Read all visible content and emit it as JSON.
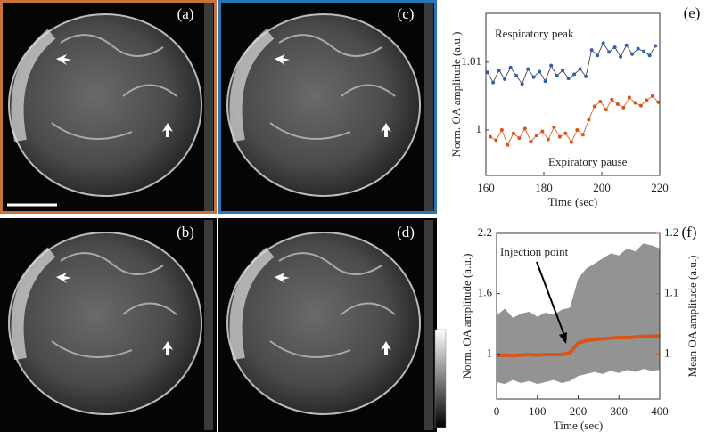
{
  "panels": [
    "(a)",
    "(b)",
    "(c)",
    "(d)"
  ],
  "chart_data": [
    {
      "type": "line",
      "panel": "(e)",
      "x_label": "Time (sec)",
      "y_label": "Norm. OA amplitude (a.u.)",
      "xlim": [
        160,
        220
      ],
      "xticks": [
        160,
        180,
        200,
        220
      ],
      "ylim": [
        0.9933,
        1.0172
      ],
      "yticks": [
        1,
        1.01
      ],
      "series": [
        {
          "name": "Respiratory peak",
          "color": "#2f5fb0",
          "x": [
            160.5,
            162.5,
            164.5,
            166.5,
            168.5,
            170.5,
            172.5,
            174.5,
            176.5,
            178.5,
            180.5,
            182.5,
            184.5,
            186.5,
            188.5,
            190.5,
            192.5,
            194.5,
            196.5,
            198.5,
            200.5,
            202.5,
            204.5,
            206.5,
            208.5,
            210.5,
            212.5,
            214.5,
            216.5,
            218.5
          ],
          "values": [
            1.0085,
            1.007,
            1.0088,
            1.0075,
            1.0092,
            1.008,
            1.0068,
            1.009,
            1.0078,
            1.0086,
            1.0072,
            1.0095,
            1.008,
            1.0088,
            1.0076,
            1.0082,
            1.009,
            1.0079,
            1.0118,
            1.011,
            1.0128,
            1.0115,
            1.0122,
            1.0108,
            1.0125,
            1.0112,
            1.012,
            1.0116,
            1.011,
            1.0124
          ]
        },
        {
          "name": "Expiratory pause",
          "color": "#d9541a",
          "x": [
            161.5,
            163.5,
            165.5,
            167.5,
            169.5,
            171.5,
            173.5,
            175.5,
            177.5,
            179.5,
            181.5,
            183.5,
            185.5,
            187.5,
            189.5,
            191.5,
            193.5,
            195.5,
            197.5,
            199.5,
            201.5,
            203.5,
            205.5,
            207.5,
            209.5,
            211.5,
            213.5,
            215.5,
            217.5,
            219.5
          ],
          "values": [
            0.999,
            0.9985,
            1.0,
            0.9978,
            0.9995,
            0.9988,
            1.0002,
            0.9983,
            0.9992,
            0.9998,
            0.9986,
            1.0004,
            0.999,
            0.9995,
            0.9982,
            1.0,
            0.9993,
            1.0015,
            1.0035,
            1.0042,
            1.003,
            1.0045,
            1.0038,
            1.0033,
            1.0048,
            1.004,
            1.0036,
            1.0044,
            1.005,
            1.0041
          ]
        }
      ]
    },
    {
      "type": "scatter",
      "panel": "(f)",
      "x_label": "Time (sec)",
      "y_label": "Norm. OA amplitude (a.u.)",
      "y2_label": "Mean OA amplitude (a.u.)",
      "annotation": "Injection point",
      "xlim": [
        0,
        400
      ],
      "xticks": [
        0,
        100,
        200,
        300,
        400
      ],
      "ylim": [
        0.55,
        2.2
      ],
      "yticks": [
        1,
        1.6,
        2.2
      ],
      "y2lim": [
        0.925,
        1.2
      ],
      "y2ticks": [
        1,
        1.1,
        1.2
      ],
      "band": {
        "color": "#808080",
        "x": [
          0,
          20,
          40,
          60,
          80,
          100,
          120,
          140,
          160,
          180,
          200,
          220,
          240,
          260,
          280,
          300,
          320,
          340,
          360,
          380,
          400
        ],
        "low": [
          0.72,
          0.7,
          0.74,
          0.71,
          0.73,
          0.7,
          0.72,
          0.74,
          0.71,
          0.73,
          0.78,
          0.8,
          0.82,
          0.8,
          0.83,
          0.81,
          0.84,
          0.82,
          0.85,
          0.83,
          0.84
        ],
        "high": [
          1.38,
          1.45,
          1.36,
          1.4,
          1.42,
          1.37,
          1.41,
          1.39,
          1.44,
          1.46,
          1.75,
          1.85,
          1.9,
          1.95,
          2.0,
          1.98,
          2.05,
          2.02,
          2.1,
          2.08,
          2.05
        ]
      },
      "series": [
        {
          "axis": "y2",
          "color": "#d9541a",
          "x": [
            0,
            20,
            40,
            60,
            80,
            100,
            120,
            140,
            160,
            180,
            200,
            220,
            240,
            260,
            280,
            300,
            320,
            340,
            360,
            380,
            400
          ],
          "values": [
            0.997,
            0.998,
            0.997,
            0.998,
            0.999,
            0.998,
            0.999,
            0.999,
            0.999,
            1.002,
            1.018,
            1.022,
            1.024,
            1.025,
            1.026,
            1.027,
            1.027,
            1.028,
            1.029,
            1.029,
            1.03
          ]
        }
      ]
    }
  ]
}
